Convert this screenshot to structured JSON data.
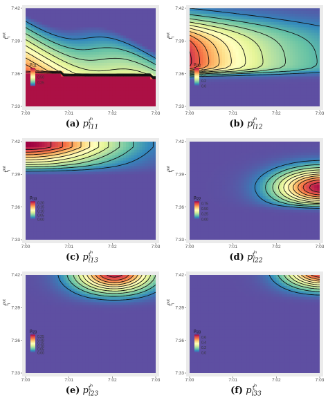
{
  "chart_data": [
    {
      "type": "heatmap",
      "caption_letter": "(a)",
      "caption_p": "p",
      "caption_sub": "i11",
      "xlabel": "t",
      "xlabel_sub": "i",
      "xlabel_sup": "in",
      "ylabel": "t",
      "ylabel_sub": "i",
      "ylabel_sup": "out",
      "x_ticks": [
        "7:00",
        "7:01",
        "7:02",
        "7:03"
      ],
      "y_ticks": [
        "7:42",
        "7:39",
        "7:36",
        "7:33"
      ],
      "xlim": [
        0,
        3
      ],
      "ylim": [
        33,
        42
      ],
      "legend_title": "p",
      "legend_sub": "i11",
      "legend_ticks": [
        "0.75",
        "0.50",
        "0.25"
      ],
      "legend_range": [
        0.1,
        0.9
      ],
      "legend_placement": "bottom-left",
      "field": "p11",
      "grid": true
    },
    {
      "type": "heatmap",
      "caption_letter": "(b)",
      "caption_p": "p",
      "caption_sub": "i12",
      "xlabel": "t",
      "xlabel_sub": "i",
      "xlabel_sup": "in",
      "ylabel": "t",
      "ylabel_sub": "i",
      "ylabel_sup": "out",
      "x_ticks": [
        "7:00",
        "7:01",
        "7:02",
        "7:03"
      ],
      "y_ticks": [
        "7:42",
        "7:39",
        "7:36",
        "7:33"
      ],
      "xlim": [
        0,
        3
      ],
      "ylim": [
        33,
        42
      ],
      "legend_title": "p",
      "legend_sub": "i12",
      "legend_ticks": [
        "0.6",
        "0.4",
        "0.2",
        "0.0"
      ],
      "legend_range": [
        0,
        0.7
      ],
      "legend_placement": "bottom-left",
      "field": "p12",
      "grid": true
    },
    {
      "type": "heatmap",
      "caption_letter": "(c)",
      "caption_p": "p",
      "caption_sub": "i13",
      "xlabel": "t",
      "xlabel_sub": "i",
      "xlabel_sup": "in",
      "ylabel": "t",
      "ylabel_sub": "i",
      "ylabel_sup": "out",
      "x_ticks": [
        "7:00",
        "7:01",
        "7:02",
        "7:03"
      ],
      "y_ticks": [
        "7:42",
        "7:39",
        "7:36",
        "7:33"
      ],
      "xlim": [
        0,
        3
      ],
      "ylim": [
        33,
        42
      ],
      "legend_title": "p",
      "legend_sub": "i13",
      "legend_ticks": [
        "0.20",
        "0.15",
        "0.10",
        "0.05",
        "0.00"
      ],
      "legend_range": [
        0,
        0.22
      ],
      "legend_placement": "bottom-left",
      "field": "p13",
      "grid": true
    },
    {
      "type": "heatmap",
      "caption_letter": "(d)",
      "caption_p": "p",
      "caption_sub": "i22",
      "xlabel": "t",
      "xlabel_sub": "i",
      "xlabel_sup": "in",
      "ylabel": "t",
      "ylabel_sub": "i",
      "ylabel_sup": "out",
      "x_ticks": [
        "7:00",
        "7:01",
        "7:02",
        "7:03"
      ],
      "y_ticks": [
        "7:42",
        "7:39",
        "7:36",
        "7:33"
      ],
      "xlim": [
        0,
        3
      ],
      "ylim": [
        33,
        42
      ],
      "legend_title": "p",
      "legend_sub": "i22",
      "legend_ticks": [
        "0.75",
        "0.50",
        "0.25",
        "0.00"
      ],
      "legend_range": [
        0,
        0.85
      ],
      "legend_placement": "bottom-left",
      "field": "p22",
      "grid": true
    },
    {
      "type": "heatmap",
      "caption_letter": "(e)",
      "caption_p": "p",
      "caption_sub": "i23",
      "xlabel": "t",
      "xlabel_sub": "i",
      "xlabel_sup": "in",
      "ylabel": "t",
      "ylabel_sub": "i",
      "ylabel_sup": "out",
      "x_ticks": [
        "7:00",
        "7:01",
        "7:02",
        "7:03"
      ],
      "y_ticks": [
        "7:42",
        "7:39",
        "7:36",
        "7:33"
      ],
      "xlim": [
        0,
        3
      ],
      "ylim": [
        33,
        42
      ],
      "legend_title": "p",
      "legend_sub": "i23",
      "legend_ticks": [
        "0.25",
        "0.20",
        "0.15",
        "0.10",
        "0.05",
        "0.00"
      ],
      "legend_range": [
        0,
        0.28
      ],
      "legend_placement": "bottom-left",
      "field": "p23",
      "grid": true
    },
    {
      "type": "heatmap",
      "caption_letter": "(f)",
      "caption_p": "p",
      "caption_sub": "i33",
      "xlabel": "t",
      "xlabel_sub": "i",
      "xlabel_sup": "in",
      "ylabel": "t",
      "ylabel_sub": "i",
      "ylabel_sup": "out",
      "x_ticks": [
        "7:00",
        "7:01",
        "7:02",
        "7:03"
      ],
      "y_ticks": [
        "7:42",
        "7:39",
        "7:36",
        "7:33"
      ],
      "xlim": [
        0,
        3
      ],
      "ylim": [
        33,
        42
      ],
      "legend_title": "p",
      "legend_sub": "i33",
      "legend_ticks": [
        "0.6",
        "0.4",
        "0.2",
        "0.0"
      ],
      "legend_range": [
        0,
        0.7
      ],
      "legend_placement": "bottom-left",
      "field": "p33",
      "grid": true
    }
  ],
  "colors": {
    "panel_background": "#ebebeb",
    "grid_line": "#ffffff",
    "contour": "#111111",
    "low": "#5e4fa2",
    "high": "#9e0142"
  }
}
